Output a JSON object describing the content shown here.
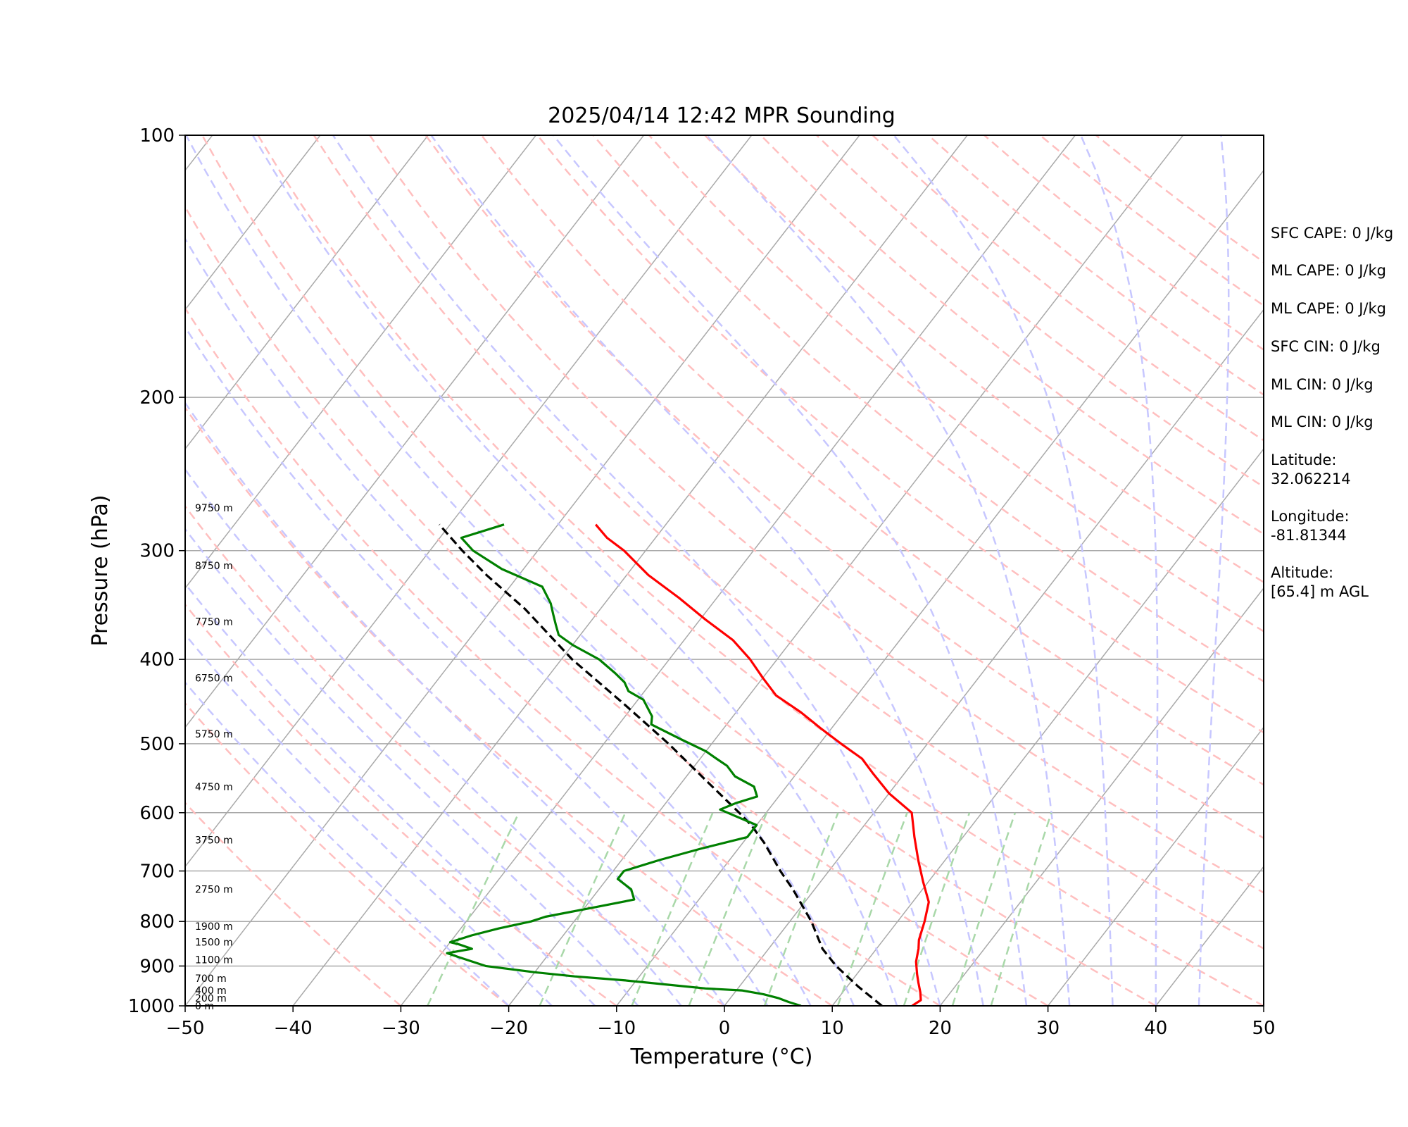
{
  "chart_data": {
    "type": "line",
    "title": "2025/04/14 12:42 MPR Sounding",
    "xlabel": "Temperature (°C)",
    "ylabel": "Pressure (hPa)",
    "xlim": [
      -50,
      50
    ],
    "ylim": [
      1000,
      100
    ],
    "y_scale": "log",
    "x_ticks": [
      "−50",
      "−40",
      "−30",
      "−20",
      "−10",
      "0",
      "10",
      "20",
      "30",
      "40",
      "50"
    ],
    "x_tick_values": [
      -50,
      -40,
      -30,
      -20,
      -10,
      0,
      10,
      20,
      30,
      40,
      50
    ],
    "y_ticks": [
      "100",
      "200",
      "300",
      "400",
      "500",
      "600",
      "700",
      "800",
      "900",
      "1000"
    ],
    "y_tick_values": [
      100,
      200,
      300,
      400,
      500,
      600,
      700,
      800,
      900,
      1000
    ],
    "grid": true,
    "temperature": {
      "color": "#ff0000",
      "points": [
        [
          17.4,
          1000
        ],
        [
          17.8,
          985
        ],
        [
          17.2,
          965
        ],
        [
          16.3,
          940
        ],
        [
          15.6,
          920
        ],
        [
          14.6,
          890
        ],
        [
          13.9,
          860
        ],
        [
          13.3,
          840
        ],
        [
          12.5,
          800
        ],
        [
          11.5,
          760
        ],
        [
          9.5,
          720
        ],
        [
          7.5,
          680
        ],
        [
          5.5,
          640
        ],
        [
          3.5,
          600
        ],
        [
          0,
          570
        ],
        [
          -3,
          540
        ],
        [
          -5,
          520
        ],
        [
          -8,
          500
        ],
        [
          -11,
          480
        ],
        [
          -14,
          460
        ],
        [
          -17.5,
          440
        ],
        [
          -20,
          420
        ],
        [
          -22.5,
          400
        ],
        [
          -25.5,
          380
        ],
        [
          -29.5,
          360
        ],
        [
          -33.5,
          340
        ],
        [
          -38,
          320
        ],
        [
          -42,
          300
        ],
        [
          -44.5,
          290
        ],
        [
          -46.5,
          280
        ]
      ]
    },
    "dewpoint": {
      "color": "#008000",
      "points": [
        [
          7.1,
          1000
        ],
        [
          5.7,
          990
        ],
        [
          4.5,
          980
        ],
        [
          2.8,
          970
        ],
        [
          0.5,
          960
        ],
        [
          -3,
          955
        ],
        [
          -7,
          945
        ],
        [
          -11,
          935
        ],
        [
          -16,
          925
        ],
        [
          -20,
          915
        ],
        [
          -25,
          900
        ],
        [
          -28,
          880
        ],
        [
          -29.5,
          870
        ],
        [
          -27.5,
          860
        ],
        [
          -29,
          850
        ],
        [
          -30,
          845
        ],
        [
          -28.5,
          830
        ],
        [
          -26.5,
          815
        ],
        [
          -24,
          800
        ],
        [
          -23,
          790
        ],
        [
          -19,
          770
        ],
        [
          -16,
          755
        ],
        [
          -17,
          735
        ],
        [
          -19,
          715
        ],
        [
          -19,
          700
        ],
        [
          -16.5,
          680
        ],
        [
          -13.5,
          660
        ],
        [
          -10,
          640
        ],
        [
          -10,
          620
        ],
        [
          -14.5,
          595
        ],
        [
          -13.5,
          585
        ],
        [
          -12,
          575
        ],
        [
          -13,
          560
        ],
        [
          -15.5,
          545
        ],
        [
          -17,
          530
        ],
        [
          -18.5,
          520
        ],
        [
          -20,
          510
        ],
        [
          -23,
          495
        ],
        [
          -27,
          475
        ],
        [
          -27.5,
          465
        ],
        [
          -29.5,
          445
        ],
        [
          -31.5,
          435
        ],
        [
          -32.5,
          425
        ],
        [
          -34,
          415
        ],
        [
          -36.5,
          400
        ],
        [
          -40,
          385
        ],
        [
          -42,
          375
        ],
        [
          -43,
          365
        ],
        [
          -44,
          355
        ],
        [
          -45,
          345
        ],
        [
          -47,
          330
        ],
        [
          -52,
          315
        ],
        [
          -56,
          300
        ],
        [
          -58,
          290
        ],
        [
          -55,
          280
        ]
      ]
    },
    "parcel_profile": {
      "color": "#000000",
      "style": "dashed",
      "points": [
        [
          14.6,
          1000
        ],
        [
          11,
          950
        ],
        [
          7.5,
          900
        ],
        [
          5,
          860
        ],
        [
          2,
          800
        ],
        [
          -2,
          735
        ],
        [
          -4.5,
          700
        ],
        [
          -8,
          650
        ],
        [
          -10.5,
          620
        ],
        [
          -12.5,
          600
        ],
        [
          -18,
          550
        ],
        [
          -24,
          500
        ],
        [
          -31,
          450
        ],
        [
          -39,
          400
        ],
        [
          -47,
          350
        ],
        [
          -53,
          320
        ],
        [
          -57,
          300
        ],
        [
          -61,
          280
        ]
      ]
    },
    "background_lines": {
      "isotherms": {
        "color": "#a9a9a9",
        "spacing_c": 10
      },
      "dry_adiabats": {
        "color": "#ffbfbf",
        "style": "dashed"
      },
      "moist_adiabats": {
        "color": "#c7c7ff",
        "style": "dashed"
      },
      "mixing_ratio_lines": {
        "color": "#a9d8a9",
        "style": "dashed"
      }
    },
    "height_labels": [
      {
        "text": "0 m",
        "p": 1000
      },
      {
        "text": "200 m",
        "p": 980
      },
      {
        "text": "400 m",
        "p": 960
      },
      {
        "text": "700 m",
        "p": 930
      },
      {
        "text": "1100 m",
        "p": 885
      },
      {
        "text": "1500 m",
        "p": 845
      },
      {
        "text": "1900 m",
        "p": 810
      },
      {
        "text": "2750 m",
        "p": 735
      },
      {
        "text": "3750 m",
        "p": 645
      },
      {
        "text": "4750 m",
        "p": 560
      },
      {
        "text": "5750 m",
        "p": 487
      },
      {
        "text": "6750 m",
        "p": 420
      },
      {
        "text": "7750 m",
        "p": 362
      },
      {
        "text": "8750 m",
        "p": 312
      },
      {
        "text": "9750 m",
        "p": 268
      }
    ],
    "annotations": [
      {
        "lines": [
          "SFC CAPE: 0 J/kg"
        ]
      },
      {
        "lines": [
          "ML CAPE: 0 J/kg"
        ]
      },
      {
        "lines": [
          "ML CAPE: 0 J/kg"
        ]
      },
      {
        "lines": [
          "SFC CIN: 0 J/kg"
        ]
      },
      {
        "lines": [
          "ML CIN: 0 J/kg"
        ]
      },
      {
        "lines": [
          "ML CIN: 0 J/kg"
        ]
      },
      {
        "lines": [
          "Latitude:",
          "32.062214"
        ]
      },
      {
        "lines": [
          "Longitude:",
          "-81.81344"
        ]
      },
      {
        "lines": [
          "Altitude:",
          "[65.4] m AGL"
        ]
      }
    ]
  }
}
